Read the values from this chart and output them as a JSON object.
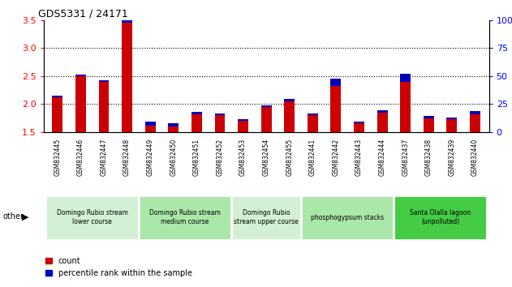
{
  "title": "GDS5331 / 24171",
  "samples": [
    "GSM832445",
    "GSM832446",
    "GSM832447",
    "GSM832448",
    "GSM832449",
    "GSM832450",
    "GSM832451",
    "GSM832452",
    "GSM832453",
    "GSM832454",
    "GSM832455",
    "GSM832441",
    "GSM832442",
    "GSM832443",
    "GSM832444",
    "GSM832437",
    "GSM832438",
    "GSM832439",
    "GSM832440"
  ],
  "red_values": [
    2.12,
    2.5,
    2.4,
    3.45,
    1.62,
    1.6,
    1.82,
    1.8,
    1.7,
    1.94,
    2.05,
    1.8,
    2.32,
    1.65,
    1.84,
    2.4,
    1.75,
    1.73,
    1.82
  ],
  "blue_values": [
    5,
    5,
    5,
    25,
    13,
    12,
    8,
    6,
    7,
    8,
    9,
    6,
    27,
    8,
    10,
    28,
    7,
    7,
    10
  ],
  "ylim_left": [
    1.5,
    3.5
  ],
  "ylim_right": [
    0,
    100
  ],
  "yticks_left": [
    1.5,
    2.0,
    2.5,
    3.0,
    3.5
  ],
  "yticks_right": [
    0,
    25,
    50,
    75,
    100
  ],
  "groups": [
    {
      "label": "Domingo Rubio stream\nlower course",
      "start": 0,
      "end": 3,
      "color": "#d4f0d4"
    },
    {
      "label": "Domingo Rubio stream\nmedium course",
      "start": 4,
      "end": 7,
      "color": "#aae8aa"
    },
    {
      "label": "Domingo Rubio\nstream upper course",
      "start": 8,
      "end": 10,
      "color": "#d4f0d4"
    },
    {
      "label": "phosphogypsum stacks",
      "start": 11,
      "end": 14,
      "color": "#aae8aa"
    },
    {
      "label": "Santa Olalla lagoon\n(unpolluted)",
      "start": 15,
      "end": 18,
      "color": "#44cc44"
    }
  ],
  "legend_count_color": "#cc0000",
  "legend_pct_color": "#0000cc",
  "bar_red_color": "#cc0000",
  "bar_blue_color": "#0000bb",
  "bar_base": 1.5,
  "dotted_line_color": "#333333",
  "chart_bg": "#ffffff",
  "xtick_bg": "#cccccc",
  "outer_bg": "#ffffff"
}
